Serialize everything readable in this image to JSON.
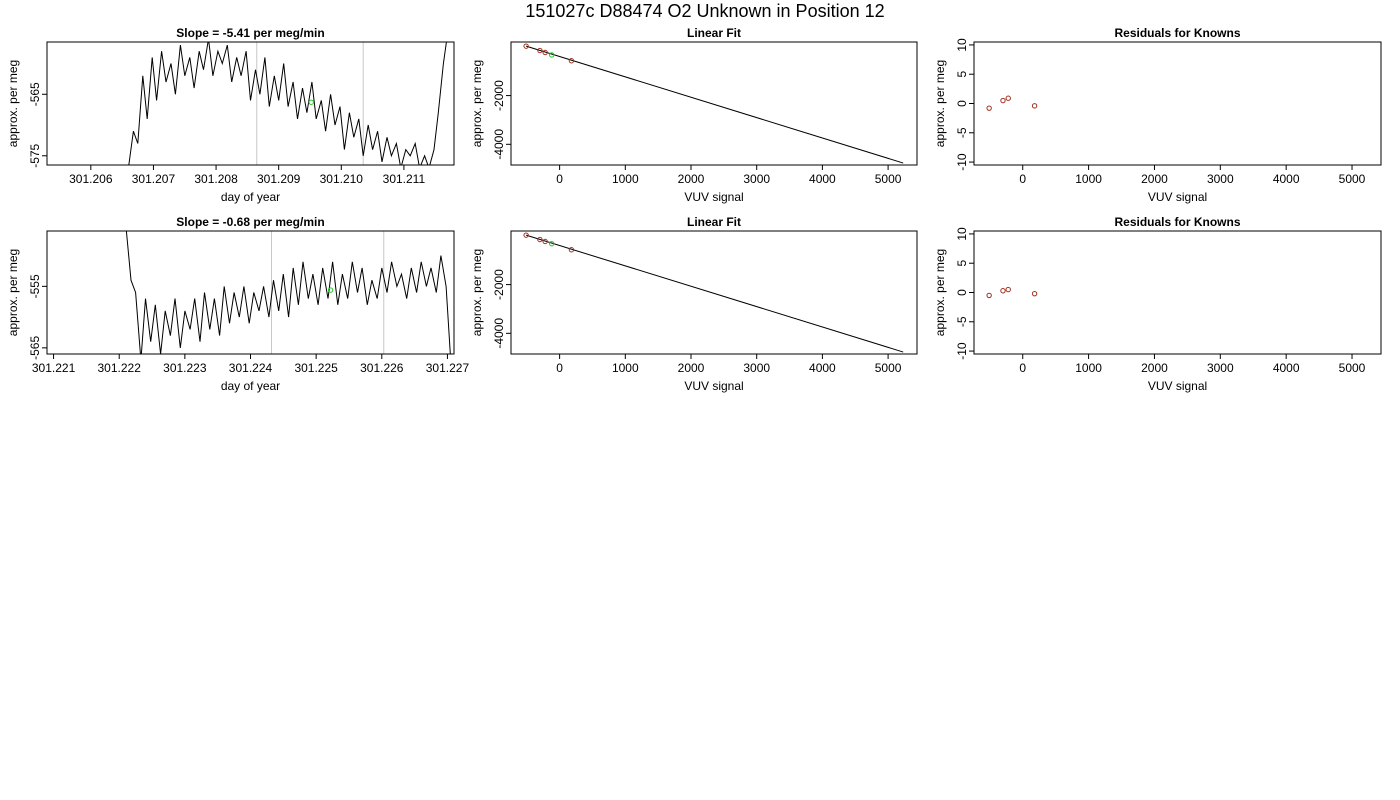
{
  "figure_title": "151027c      D88474   O2 Unknown in Position  12",
  "colors": {
    "line": "#000000",
    "known_point": "#a0301e",
    "unknown_point": "#22cc22",
    "vline": "#c8c8c8"
  },
  "chart_data": [
    {
      "type": "line",
      "title": "Slope =  -5.41  per meg/min",
      "xlabel": "day of year",
      "ylabel": "approx. per meg",
      "xlim": [
        301.2053,
        301.2118
      ],
      "ylim": [
        -576.5,
        -556.5
      ],
      "xticks": [
        301.206,
        301.207,
        301.208,
        301.209,
        301.21,
        301.211
      ],
      "xtick_labels": [
        "301.206",
        "301.207",
        "301.208",
        "301.209",
        "301.210",
        "301.211"
      ],
      "yticks": [
        -565,
        -575
      ],
      "ytick_labels": [
        "-565",
        "-575"
      ],
      "vlines": [
        301.20865,
        301.21035
      ],
      "unknown_point": {
        "x": 301.20952,
        "y": -566.3
      },
      "series": [
        {
          "x": [
            301.2066,
            301.20668,
            301.20675,
            301.20683,
            301.2069,
            301.20698,
            301.20705,
            301.20713,
            301.2072,
            301.20728,
            301.20735,
            301.20743,
            301.2075,
            301.20758,
            301.20765,
            301.20773,
            301.2078,
            301.20788,
            301.20795,
            301.20803,
            301.2081,
            301.20818,
            301.20825,
            301.20833,
            301.2084,
            301.20848,
            301.20855,
            301.20863,
            301.2087,
            301.20878,
            301.20885,
            301.20893,
            301.209,
            301.20908,
            301.20915,
            301.20923,
            301.2093,
            301.20938,
            301.20945,
            301.20953,
            301.2096,
            301.20968,
            301.20975,
            301.20983,
            301.2099,
            301.20998,
            301.21005,
            301.21013,
            301.2102,
            301.21028,
            301.21035,
            301.21043,
            301.2105,
            301.21058,
            301.21065,
            301.21073,
            301.2108,
            301.21088,
            301.21095,
            301.21103,
            301.2111,
            301.21118,
            301.21125,
            301.21133,
            301.2114,
            301.21148,
            301.21155,
            301.21163,
            301.2117
          ],
          "values": [
            -577,
            -571,
            -573,
            -562,
            -569,
            -559,
            -566,
            -558,
            -563,
            -560,
            -565,
            -557,
            -562,
            -559,
            -564,
            -558,
            -561,
            -556,
            -562,
            -558,
            -560,
            -557,
            -563,
            -559,
            -562,
            -558,
            -566,
            -561,
            -565,
            -559,
            -567,
            -562,
            -566,
            -560,
            -567,
            -563,
            -569,
            -564,
            -568,
            -563,
            -569,
            -566,
            -571,
            -565,
            -570,
            -567,
            -574,
            -568,
            -572,
            -569,
            -575,
            -570,
            -574,
            -571,
            -576,
            -572,
            -575,
            -573,
            -577,
            -574,
            -575,
            -573,
            -577,
            -575,
            -577,
            -574,
            -568,
            -560,
            -555
          ]
        }
      ]
    },
    {
      "type": "scatter",
      "title": "Linear Fit",
      "xlabel": "VUV signal",
      "ylabel": "approx. per meg",
      "xlim": [
        -740,
        5440
      ],
      "ylim": [
        -4850,
        200
      ],
      "xticks": [
        0,
        1000,
        2000,
        3000,
        4000,
        5000
      ],
      "xtick_labels": [
        "0",
        "1000",
        "2000",
        "3000",
        "4000",
        "5000"
      ],
      "yticks": [
        -2000,
        -4000
      ],
      "ytick_labels": [
        "-2000",
        "-4000"
      ],
      "fit_line": {
        "x": [
          -510,
          5230
        ],
        "y": [
          30,
          -4770
        ]
      },
      "known_points": {
        "x": [
          -510,
          -300,
          -220,
          180
        ],
        "y": [
          30,
          -150,
          -230,
          -570
        ]
      },
      "unknown_point": {
        "x": -120,
        "y": -330
      }
    },
    {
      "type": "scatter",
      "title": "Residuals for Knowns",
      "xlabel": "VUV signal",
      "ylabel": "approx. per meg",
      "xlim": [
        -740,
        5440
      ],
      "ylim": [
        -10.5,
        10.5
      ],
      "xticks": [
        0,
        1000,
        2000,
        3000,
        4000,
        5000
      ],
      "xtick_labels": [
        "0",
        "1000",
        "2000",
        "3000",
        "4000",
        "5000"
      ],
      "yticks": [
        -10,
        -5,
        0,
        5,
        10
      ],
      "ytick_labels": [
        "-10",
        "-5",
        "0",
        "5",
        "10"
      ],
      "known_points": {
        "x": [
          -510,
          -300,
          -220,
          180
        ],
        "y": [
          -0.8,
          0.5,
          0.9,
          -0.4
        ]
      }
    },
    {
      "type": "line",
      "title": "Slope =  -0.68  per meg/min",
      "xlabel": "day of year",
      "ylabel": "approx. per meg",
      "xlim": [
        301.2209,
        301.2271
      ],
      "ylim": [
        -566.0,
        -546.0
      ],
      "xticks": [
        301.221,
        301.222,
        301.223,
        301.224,
        301.225,
        301.226,
        301.227
      ],
      "xtick_labels": [
        "301.221",
        "301.222",
        "301.223",
        "301.224",
        "301.225",
        "301.226",
        "301.227"
      ],
      "yticks": [
        -555,
        -565
      ],
      "ytick_labels": [
        "-555",
        "-565"
      ],
      "vlines": [
        301.22432,
        301.22603
      ],
      "unknown_point": {
        "x": 301.22522,
        "y": -555.6
      },
      "series": [
        {
          "x": [
            301.2221,
            301.22218,
            301.22225,
            301.22233,
            301.2224,
            301.22248,
            301.22255,
            301.22263,
            301.2227,
            301.22278,
            301.22285,
            301.22293,
            301.223,
            301.22308,
            301.22315,
            301.22323,
            301.2233,
            301.22338,
            301.22345,
            301.22353,
            301.2236,
            301.22368,
            301.22375,
            301.22383,
            301.2239,
            301.22398,
            301.22405,
            301.22413,
            301.2242,
            301.22428,
            301.22435,
            301.22443,
            301.2245,
            301.22458,
            301.22465,
            301.22473,
            301.2248,
            301.22488,
            301.22495,
            301.22503,
            301.2251,
            301.22518,
            301.22525,
            301.22533,
            301.2254,
            301.22548,
            301.22555,
            301.22563,
            301.2257,
            301.22578,
            301.22585,
            301.22593,
            301.226,
            301.22608,
            301.22615,
            301.22623,
            301.2263,
            301.22638,
            301.22645,
            301.22653,
            301.2266,
            301.22668,
            301.22675,
            301.22683,
            301.2269,
            301.22698,
            301.22705
          ],
          "values": [
            -545,
            -554,
            -556,
            -567,
            -557,
            -564,
            -558,
            -566,
            -559,
            -563,
            -557,
            -565,
            -559,
            -562,
            -557,
            -564,
            -556,
            -562,
            -557,
            -563,
            -555,
            -561,
            -556,
            -560,
            -555,
            -561,
            -556,
            -559,
            -555,
            -560,
            -554,
            -559,
            -553,
            -560,
            -552,
            -558,
            -551,
            -557,
            -553,
            -558,
            -552,
            -557,
            -551,
            -558,
            -553,
            -557,
            -551,
            -556,
            -552,
            -558,
            -554,
            -557,
            -552,
            -556,
            -551,
            -555,
            -553,
            -557,
            -552,
            -556,
            -551,
            -555,
            -552,
            -556,
            -550,
            -555,
            -567
          ]
        }
      ]
    },
    {
      "type": "scatter",
      "title": "Linear Fit",
      "xlabel": "VUV signal",
      "ylabel": "approx. per meg",
      "xlim": [
        -740,
        5440
      ],
      "ylim": [
        -4850,
        200
      ],
      "xticks": [
        0,
        1000,
        2000,
        3000,
        4000,
        5000
      ],
      "xtick_labels": [
        "0",
        "1000",
        "2000",
        "3000",
        "4000",
        "5000"
      ],
      "yticks": [
        -2000,
        -4000
      ],
      "ytick_labels": [
        "-2000",
        "-4000"
      ],
      "fit_line": {
        "x": [
          -510,
          5230
        ],
        "y": [
          30,
          -4770
        ]
      },
      "known_points": {
        "x": [
          -510,
          -300,
          -220,
          180
        ],
        "y": [
          30,
          -150,
          -230,
          -570
        ]
      },
      "unknown_point": {
        "x": -120,
        "y": -320
      }
    },
    {
      "type": "scatter",
      "title": "Residuals for Knowns",
      "xlabel": "VUV signal",
      "ylabel": "approx. per meg",
      "xlim": [
        -740,
        5440
      ],
      "ylim": [
        -10.5,
        10.5
      ],
      "xticks": [
        0,
        1000,
        2000,
        3000,
        4000,
        5000
      ],
      "xtick_labels": [
        "0",
        "1000",
        "2000",
        "3000",
        "4000",
        "5000"
      ],
      "yticks": [
        -10,
        -5,
        0,
        5,
        10
      ],
      "ytick_labels": [
        "-10",
        "-5",
        "0",
        "5",
        "10"
      ],
      "known_points": {
        "x": [
          -510,
          -300,
          -220,
          180
        ],
        "y": [
          -0.5,
          0.3,
          0.5,
          -0.2
        ]
      }
    }
  ]
}
